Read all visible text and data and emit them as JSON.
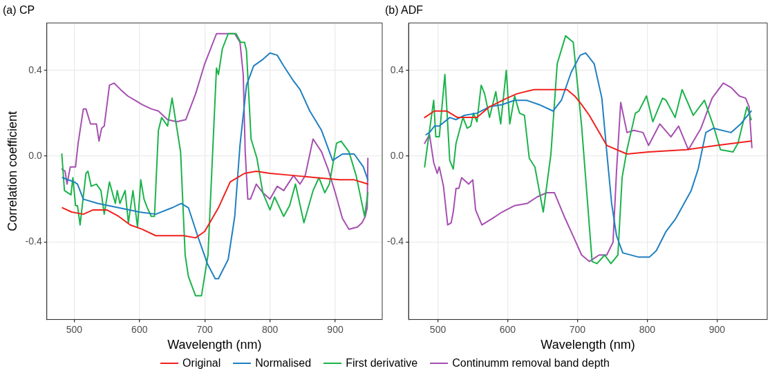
{
  "chart_data": [
    {
      "type": "line",
      "title": "(a) CP",
      "xlabel": "Wavelength (nm)",
      "ylabel": "Correlation coefficient",
      "xlim": [
        458,
        972
      ],
      "xticks": [
        500,
        600,
        700,
        800,
        900
      ],
      "ylim": [
        -0.76,
        0.62
      ],
      "yticks": [
        {
          "value": -0.4,
          "label": "-0.4"
        },
        {
          "value": 0,
          "label": "0.0"
        },
        {
          "value": 0.4,
          "label": "0.4"
        }
      ],
      "grid": true,
      "legend": "bottom",
      "marker": "none",
      "line_style": "solid",
      "series": [
        {
          "name": "Original",
          "color": "#f0201c",
          "x": [
            482,
            496,
            514,
            529,
            550,
            568,
            586,
            604,
            625,
            650,
            668,
            686,
            700,
            721,
            739,
            761,
            779,
            800,
            836,
            871,
            907,
            929,
            950
          ],
          "values": [
            -0.24,
            -0.26,
            -0.27,
            -0.25,
            -0.25,
            -0.28,
            -0.32,
            -0.34,
            -0.37,
            -0.37,
            -0.37,
            -0.38,
            -0.35,
            -0.24,
            -0.12,
            -0.08,
            -0.07,
            -0.08,
            -0.09,
            -0.1,
            -0.11,
            -0.11,
            -0.13
          ]
        },
        {
          "name": "Normalised",
          "color": "#1f7fc0",
          "x": [
            482,
            500,
            505,
            514,
            536,
            568,
            600,
            625,
            650,
            664,
            675,
            689,
            704,
            716,
            721,
            736,
            746,
            754,
            764,
            775,
            789,
            800,
            811,
            821,
            836,
            846,
            861,
            879,
            896,
            911,
            929,
            943,
            950
          ],
          "values": [
            -0.1,
            -0.12,
            -0.13,
            -0.2,
            -0.22,
            -0.24,
            -0.26,
            -0.27,
            -0.24,
            -0.22,
            -0.24,
            -0.37,
            -0.5,
            -0.57,
            -0.57,
            -0.48,
            -0.28,
            0.05,
            0.33,
            0.42,
            0.45,
            0.48,
            0.47,
            0.42,
            0.35,
            0.31,
            0.21,
            0.12,
            -0.02,
            0.01,
            0.01,
            -0.05,
            -0.11
          ]
        },
        {
          "name": "First derivative",
          "color": "#1ab34a",
          "x": [
            481,
            485,
            495,
            498,
            502,
            505,
            509,
            518,
            521,
            526,
            534,
            541,
            546,
            554,
            563,
            566,
            570,
            578,
            583,
            590,
            597,
            602,
            607,
            612,
            618,
            623,
            629,
            634,
            643,
            650,
            663,
            670,
            675,
            686,
            695,
            705,
            718,
            721,
            727,
            736,
            748,
            755,
            761,
            764,
            771,
            780,
            789,
            800,
            807,
            821,
            830,
            839,
            852,
            866,
            875,
            884,
            891,
            902,
            909,
            921,
            932,
            945,
            950
          ],
          "values": [
            0.01,
            -0.16,
            -0.18,
            -0.1,
            -0.23,
            -0.23,
            -0.32,
            -0.08,
            -0.07,
            -0.14,
            -0.13,
            -0.16,
            -0.27,
            -0.12,
            -0.22,
            -0.16,
            -0.22,
            -0.16,
            -0.31,
            -0.16,
            -0.33,
            -0.11,
            -0.2,
            -0.24,
            -0.28,
            -0.28,
            0.12,
            0.18,
            0.14,
            0.27,
            0.02,
            -0.46,
            -0.56,
            -0.65,
            -0.65,
            -0.46,
            0.41,
            0.38,
            0.5,
            0.57,
            0.57,
            0.53,
            0.53,
            0.49,
            0.08,
            -0.01,
            -0.17,
            -0.25,
            -0.19,
            -0.28,
            -0.23,
            -0.13,
            -0.31,
            -0.16,
            -0.1,
            -0.17,
            -0.13,
            0.06,
            0.07,
            0.02,
            -0.09,
            -0.28,
            -0.17
          ]
        },
        {
          "name": "Continumm removal band depth",
          "color": "#a54fb0",
          "x": [
            481,
            486,
            489,
            494,
            502,
            506,
            514,
            518,
            525,
            534,
            538,
            542,
            546,
            554,
            561,
            571,
            582,
            593,
            604,
            618,
            629,
            643,
            657,
            671,
            686,
            700,
            718,
            721,
            736,
            746,
            754,
            759,
            762,
            766,
            770,
            779,
            789,
            800,
            811,
            821,
            836,
            846,
            854,
            866,
            879,
            889,
            900,
            911,
            921,
            934,
            941,
            946,
            949,
            950
          ],
          "values": [
            -0.06,
            -0.07,
            -0.13,
            -0.05,
            -0.05,
            0.06,
            0.22,
            0.22,
            0.15,
            0.15,
            0.07,
            0.13,
            0.14,
            0.33,
            0.34,
            0.31,
            0.28,
            0.26,
            0.24,
            0.22,
            0.21,
            0.17,
            0.16,
            0.17,
            0.29,
            0.43,
            0.57,
            0.57,
            0.57,
            0.57,
            0.53,
            0.38,
            0.02,
            -0.2,
            -0.2,
            -0.13,
            -0.17,
            -0.2,
            -0.14,
            -0.16,
            -0.09,
            -0.13,
            -0.09,
            0.08,
            0.02,
            -0.06,
            -0.17,
            -0.29,
            -0.34,
            -0.33,
            -0.31,
            -0.28,
            -0.24,
            -0.01
          ]
        }
      ]
    },
    {
      "type": "line",
      "title": "(b) ADF",
      "xlabel": "Wavelength (nm)",
      "xlim": [
        458,
        972
      ],
      "xticks": [
        500,
        600,
        700,
        800,
        900
      ],
      "ylim": [
        -0.76,
        0.62
      ],
      "yticks": [
        {
          "value": -0.4,
          "label": "-0.4"
        },
        {
          "value": 0,
          "label": "0.0"
        },
        {
          "value": 0.4,
          "label": "0.4"
        }
      ],
      "grid": true,
      "marker": "none",
      "line_style": "solid",
      "series": [
        {
          "color": "#f0201c",
          "x": [
            481,
            495,
            513,
            528,
            556,
            574,
            599,
            613,
            638,
            663,
            685,
            696,
            706,
            717,
            742,
            771,
            802,
            856,
            900,
            949
          ],
          "values": [
            0.18,
            0.21,
            0.21,
            0.18,
            0.18,
            0.23,
            0.27,
            0.29,
            0.31,
            0.31,
            0.31,
            0.28,
            0.24,
            0.19,
            0.05,
            0.01,
            0.02,
            0.03,
            0.05,
            0.07
          ]
        },
        {
          "color": "#1f7fc0",
          "x": [
            483,
            488,
            495,
            502,
            517,
            526,
            538,
            556,
            574,
            592,
            610,
            627,
            645,
            665,
            677,
            691,
            704,
            712,
            724,
            735,
            742,
            749,
            756,
            765,
            788,
            803,
            813,
            827,
            841,
            863,
            873,
            884,
            895,
            920,
            934,
            949
          ],
          "values": [
            0.1,
            0.11,
            0.14,
            0.14,
            0.18,
            0.17,
            0.19,
            0.2,
            0.23,
            0.24,
            0.26,
            0.26,
            0.24,
            0.21,
            0.26,
            0.39,
            0.47,
            0.48,
            0.43,
            0.27,
            0.02,
            -0.22,
            -0.37,
            -0.45,
            -0.47,
            -0.47,
            -0.44,
            -0.35,
            -0.29,
            -0.16,
            -0.06,
            0.11,
            0.13,
            0.11,
            0.15,
            0.21
          ]
        },
        {
          "color": "#1ab34a",
          "x": [
            481,
            488,
            494,
            497,
            502,
            510,
            517,
            522,
            526,
            536,
            542,
            547,
            551,
            556,
            562,
            567,
            574,
            583,
            590,
            598,
            603,
            610,
            617,
            624,
            631,
            639,
            651,
            662,
            671,
            683,
            694,
            706,
            721,
            728,
            739,
            748,
            758,
            764,
            771,
            783,
            788,
            799,
            808,
            822,
            827,
            840,
            850,
            866,
            882,
            895,
            905,
            923,
            930,
            943,
            949
          ],
          "values": [
            -0.05,
            0.12,
            0.26,
            0.09,
            0.09,
            0.38,
            -0.02,
            -0.06,
            0.06,
            0.18,
            0.13,
            0.14,
            0.2,
            0.16,
            0.33,
            0.29,
            0.18,
            0.3,
            0.15,
            0.4,
            0.15,
            0.28,
            0.2,
            0.19,
            -0.01,
            -0.05,
            -0.26,
            0.01,
            0.43,
            0.56,
            0.53,
            0.14,
            -0.49,
            -0.5,
            -0.46,
            -0.5,
            -0.46,
            -0.1,
            0.03,
            0.2,
            0.21,
            0.28,
            0.16,
            0.27,
            0.26,
            0.18,
            0.31,
            0.19,
            0.26,
            0.14,
            0.03,
            0.02,
            0.06,
            0.23,
            0.17
          ]
        },
        {
          "color": "#a54fb0",
          "x": [
            481,
            488,
            494,
            499,
            502,
            508,
            514,
            519,
            522,
            526,
            530,
            534,
            544,
            550,
            554,
            563,
            578,
            592,
            610,
            628,
            642,
            656,
            667,
            681,
            695,
            706,
            717,
            731,
            742,
            751,
            756,
            762,
            771,
            781,
            794,
            802,
            818,
            834,
            845,
            859,
            877,
            893,
            909,
            920,
            932,
            941,
            946,
            950
          ],
          "values": [
            0.06,
            0.1,
            -0.03,
            -0.08,
            -0.05,
            -0.14,
            -0.32,
            -0.31,
            -0.26,
            -0.15,
            -0.15,
            -0.1,
            -0.13,
            -0.11,
            -0.25,
            -0.32,
            -0.29,
            -0.26,
            -0.23,
            -0.22,
            -0.19,
            -0.17,
            -0.17,
            -0.28,
            -0.38,
            -0.46,
            -0.49,
            -0.46,
            -0.46,
            -0.4,
            -0.07,
            0.25,
            0.11,
            0.12,
            0.11,
            0.05,
            0.15,
            0.09,
            0.14,
            0.03,
            0.13,
            0.27,
            0.34,
            0.32,
            0.28,
            0.27,
            0.23,
            0.04
          ]
        }
      ]
    }
  ]
}
